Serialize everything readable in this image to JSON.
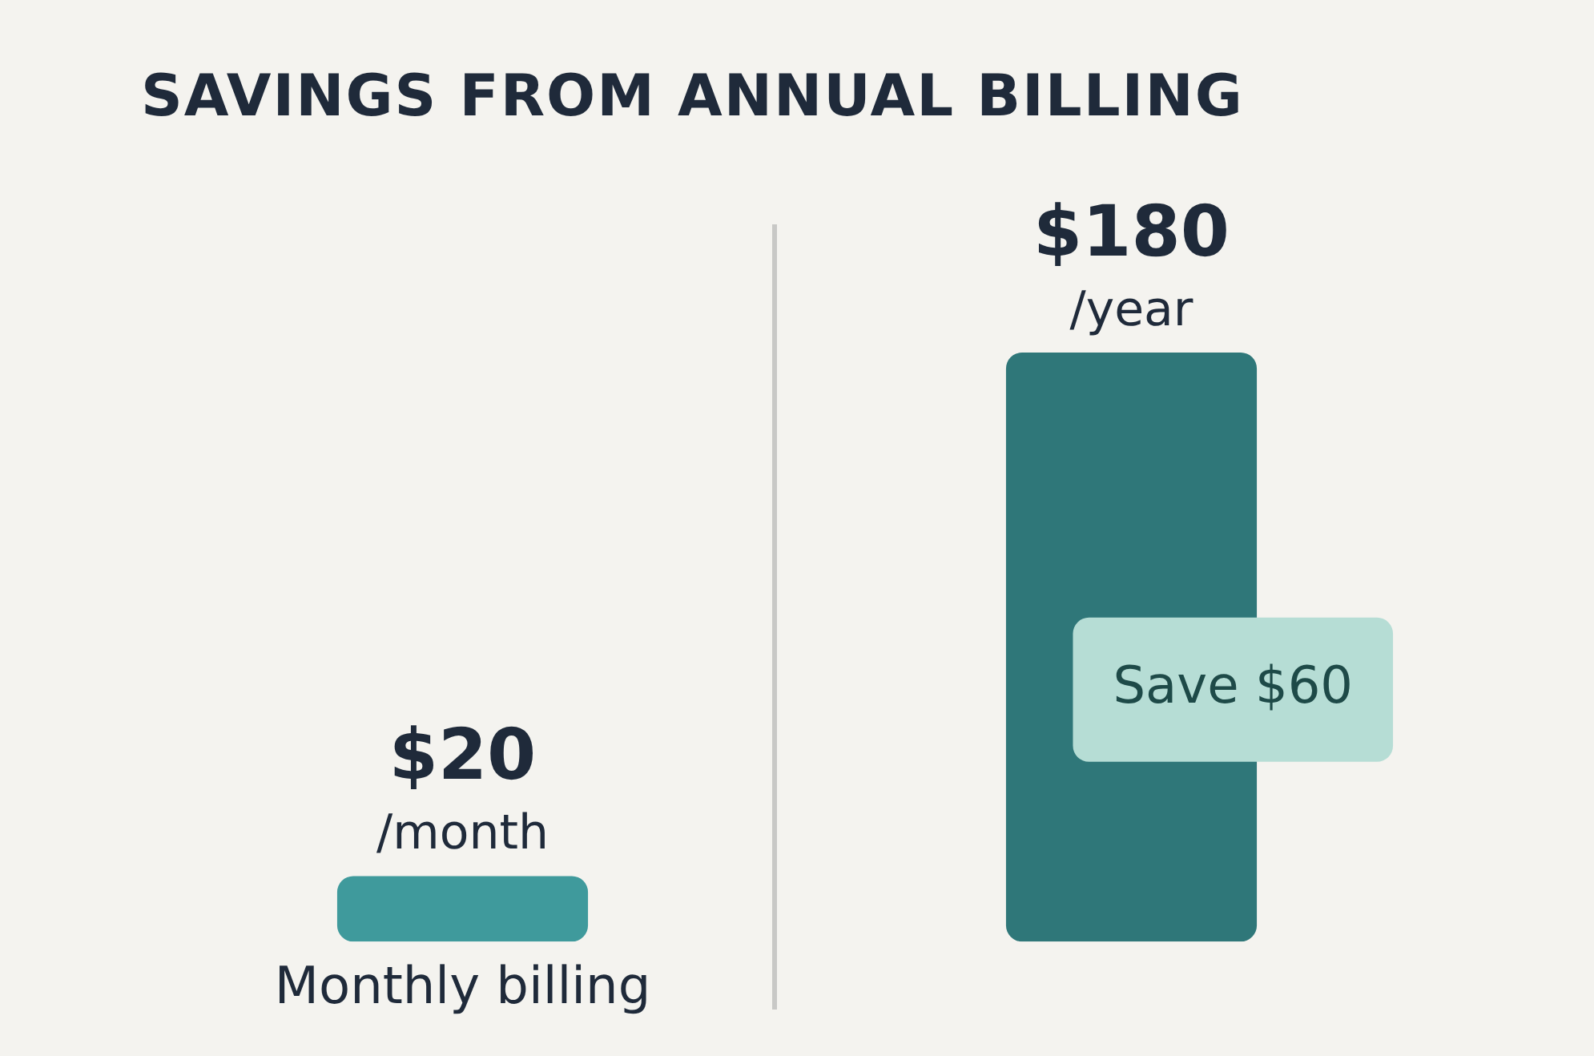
{
  "chart_data": {
    "type": "bar",
    "title": "SAVINGS FROM ANNUAL BILLING",
    "categories": [
      "Monthly billing",
      null
    ],
    "values": [
      20,
      180
    ],
    "colors": [
      "#3f9a9c",
      "#2f7779"
    ],
    "value_labels": [
      "$20 /month",
      "$180 /year"
    ],
    "annotations": [
      "Save $60"
    ],
    "grid": false,
    "legend": false
  }
}
